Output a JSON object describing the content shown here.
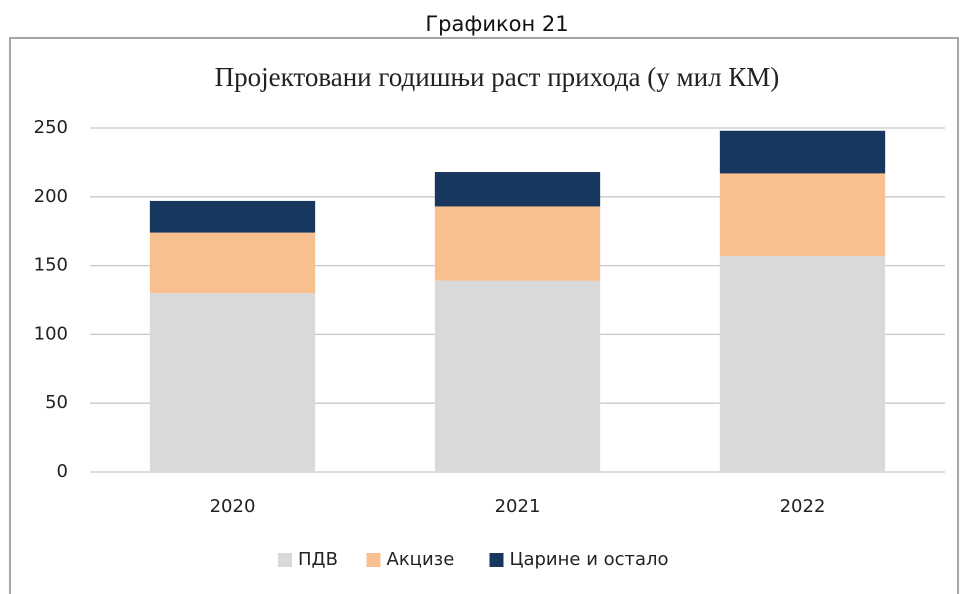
{
  "caption": "Графикон 21",
  "chart_data": {
    "type": "stacked_bar",
    "title": "Пројектовани годишњи раст прихода (у мил КМ)",
    "categories": [
      "2020",
      "2021",
      "2022"
    ],
    "series": [
      {
        "name": "ПДВ",
        "color": "#d9d9d9",
        "values": [
          130,
          139,
          157
        ]
      },
      {
        "name": "Акцизе",
        "color": "#f8bf8f",
        "values": [
          44,
          54,
          60
        ]
      },
      {
        "name": "Царине и остало",
        "color": "#17375e",
        "values": [
          23,
          25,
          31
        ]
      }
    ],
    "ylim": [
      0,
      250
    ],
    "yticks": [
      0,
      50,
      100,
      150,
      200,
      250
    ],
    "grid": true,
    "legend": "bottom"
  }
}
